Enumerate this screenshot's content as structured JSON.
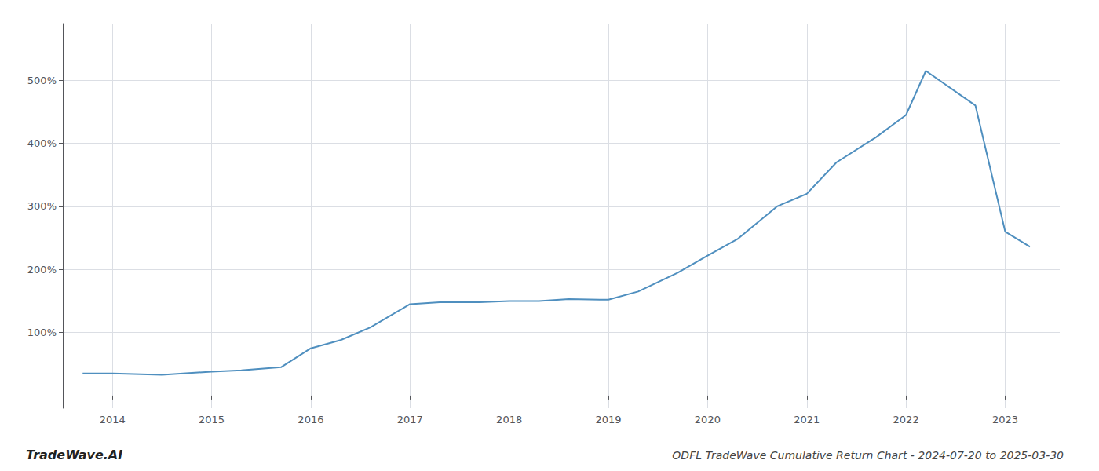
{
  "chart_data": {
    "type": "line",
    "title": "ODFL TradeWave Cumulative Return Chart - 2024-07-20 to 2025-03-30",
    "annotations": [
      "TradeWave.AI"
    ],
    "x": [
      2013.7,
      2014.0,
      2014.5,
      2015.0,
      2015.3,
      2015.7,
      2016.0,
      2016.3,
      2016.6,
      2017.0,
      2017.3,
      2017.7,
      2018.0,
      2018.3,
      2018.6,
      2019.0,
      2019.3,
      2019.7,
      2020.0,
      2020.3,
      2020.7,
      2021.0,
      2021.3,
      2021.7,
      2022.0,
      2022.2,
      2022.7,
      2023.0,
      2023.25
    ],
    "values": [
      35,
      35,
      33,
      38,
      40,
      45,
      75,
      88,
      108,
      145,
      148,
      148,
      150,
      150,
      153,
      152,
      165,
      195,
      222,
      248,
      300,
      320,
      370,
      410,
      445,
      515,
      460,
      260,
      236
    ],
    "color": "#4f8fbf",
    "xlim": [
      2013.5,
      2023.55
    ],
    "xticks": [
      2014,
      2015,
      2016,
      2017,
      2018,
      2019,
      2020,
      2021,
      2022,
      2023
    ],
    "ylim": [
      -20,
      590
    ],
    "yticks": [
      {
        "value": 100,
        "label": "100%"
      },
      {
        "value": 200,
        "label": "200%"
      },
      {
        "value": 300,
        "label": "300%"
      },
      {
        "value": 400,
        "label": "400%"
      },
      {
        "value": 500,
        "label": "500%"
      }
    ],
    "grid": true
  }
}
